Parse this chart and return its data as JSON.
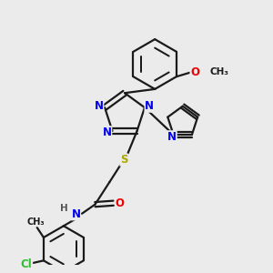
{
  "background_color": "#ebebeb",
  "bond_color": "#1a1a1a",
  "bond_width": 1.6,
  "atom_colors": {
    "N": "#0000ee",
    "O": "#ee0000",
    "S": "#aaaa00",
    "Cl": "#33bb33",
    "H": "#555555",
    "C": "#1a1a1a"
  },
  "font_size": 8.5,
  "figsize": [
    3.0,
    3.0
  ],
  "dpi": 100
}
